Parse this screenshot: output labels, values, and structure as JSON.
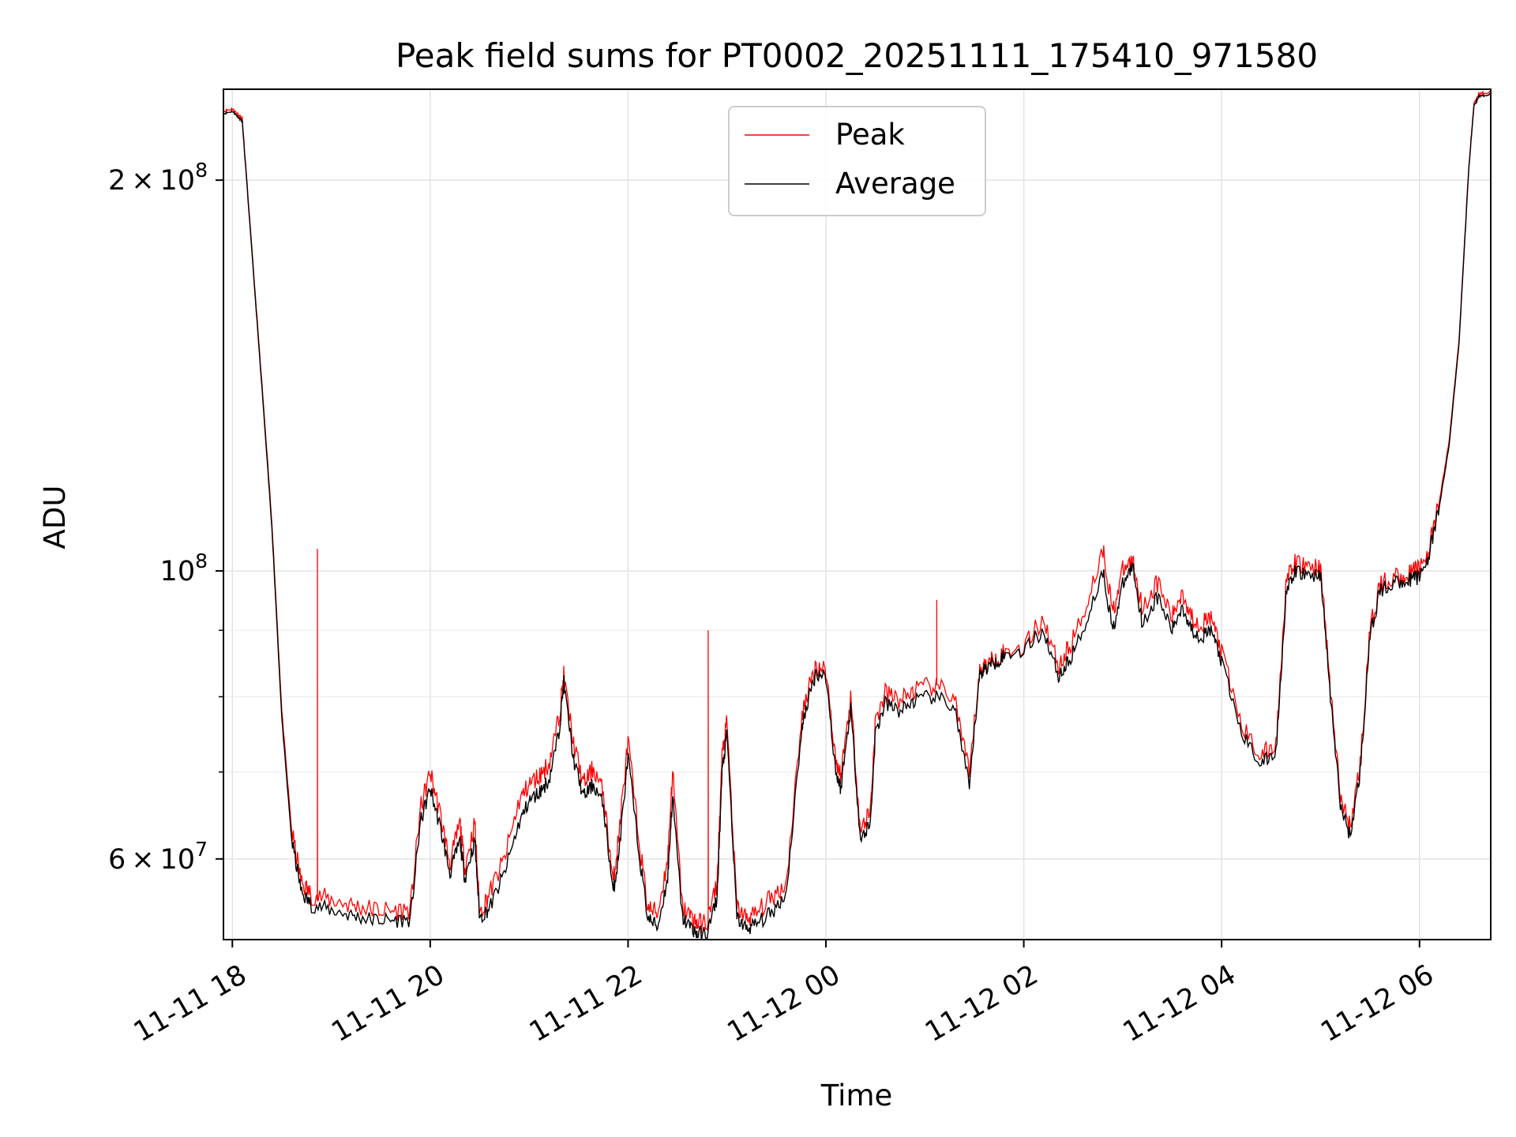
{
  "chart_data": {
    "type": "line",
    "title": "Peak field sums for PT0002_20251111_175410_971580",
    "xlabel": "Time",
    "ylabel": "ADU",
    "yscale": "log",
    "ylim": [
      52000000,
      235000000
    ],
    "xlim_hours": [
      17.91,
      30.72
    ],
    "grid": true,
    "legend_position": "upper-center",
    "x_ticks": [
      {
        "hour": 18,
        "label": "11-11 18"
      },
      {
        "hour": 20,
        "label": "11-11 20"
      },
      {
        "hour": 22,
        "label": "11-11 22"
      },
      {
        "hour": 24,
        "label": "11-12 00"
      },
      {
        "hour": 26,
        "label": "11-12 02"
      },
      {
        "hour": 28,
        "label": "11-12 04"
      },
      {
        "hour": 30,
        "label": "11-12 06"
      }
    ],
    "y_major_ticks": [
      {
        "value": 60000000,
        "mantissa": "6",
        "exp": "7"
      },
      {
        "value": 100000000,
        "mantissa": "",
        "exp": "8"
      },
      {
        "value": 200000000,
        "mantissa": "2",
        "exp": "8"
      }
    ],
    "y_minor_grid": [
      70000000,
      80000000,
      90000000
    ],
    "x_hours": [
      17.91,
      18.0,
      18.05,
      18.1,
      18.2,
      18.3,
      18.4,
      18.5,
      18.6,
      18.7,
      18.8,
      19.0,
      19.2,
      19.4,
      19.6,
      19.8,
      19.9,
      20.0,
      20.1,
      20.2,
      20.3,
      20.35,
      20.45,
      20.5,
      20.6,
      20.75,
      20.9,
      21.0,
      21.1,
      21.2,
      21.3,
      21.35,
      21.45,
      21.55,
      21.65,
      21.75,
      21.85,
      21.9,
      22.0,
      22.1,
      22.2,
      22.3,
      22.4,
      22.45,
      22.55,
      22.65,
      22.7,
      22.8,
      22.9,
      22.95,
      23.0,
      23.1,
      23.2,
      23.3,
      23.45,
      23.6,
      23.75,
      23.8,
      23.9,
      24.0,
      24.1,
      24.15,
      24.25,
      24.35,
      24.45,
      24.5,
      24.6,
      24.75,
      24.9,
      25.1,
      25.3,
      25.45,
      25.55,
      25.6,
      25.7,
      25.8,
      26.0,
      26.2,
      26.35,
      26.45,
      26.6,
      26.8,
      26.9,
      27.0,
      27.1,
      27.2,
      27.35,
      27.5,
      27.6,
      27.7,
      27.8,
      27.9,
      28.0,
      28.2,
      28.4,
      28.55,
      28.65,
      28.75,
      28.9,
      29.0,
      29.1,
      29.2,
      29.3,
      29.4,
      29.5,
      29.6,
      29.75,
      29.9,
      30.0,
      30.1,
      30.2,
      30.3,
      30.4,
      30.5,
      30.55,
      30.6,
      30.72
    ],
    "series": [
      {
        "name": "Average",
        "color": "#000000",
        "values": [
          225000000,
          226000000,
          224000000,
          222000000,
          175000000,
          138000000,
          108000000,
          77000000,
          62000000,
          56500000,
          55300000,
          54800000,
          54300000,
          53900000,
          53800000,
          53900000,
          64000000,
          68000000,
          63500000,
          58500000,
          62000000,
          58000000,
          62000000,
          54000000,
          55000000,
          58500000,
          64000000,
          66500000,
          67500000,
          69000000,
          75000000,
          82000000,
          71500000,
          67000000,
          68500000,
          66000000,
          56500000,
          60000000,
          72000000,
          61500000,
          54000000,
          53200000,
          58000000,
          67000000,
          54000000,
          53000000,
          52500000,
          52600000,
          56000000,
          70000000,
          75000000,
          54000000,
          53000000,
          53500000,
          54500000,
          56500000,
          75000000,
          78500000,
          83500000,
          83000000,
          70000000,
          68000000,
          78500000,
          62000000,
          64000000,
          75000000,
          79000000,
          78000000,
          79500000,
          80000000,
          78500000,
          68000000,
          83000000,
          84000000,
          85000000,
          86000000,
          87000000,
          90000000,
          83000000,
          85000000,
          90000000,
          100000000,
          90000000,
          97500000,
          101000000,
          91000000,
          95500000,
          90000000,
          94000000,
          90000000,
          89000000,
          90000000,
          85000000,
          75000000,
          71000000,
          72500000,
          96000000,
          100000000,
          99000000,
          99500000,
          80000000,
          66000000,
          62500000,
          70000000,
          89000000,
          96500000,
          98000000,
          98500000,
          99000000,
          103000000,
          112000000,
          125000000,
          150000000,
          205000000,
          228000000,
          232000000,
          233000000
        ]
      },
      {
        "name": "Peak",
        "color": "#ff0000",
        "values": [
          226000000,
          227000000,
          225000000,
          223000000,
          176000000,
          139000000,
          109000000,
          78000000,
          63000000,
          57500000,
          56300000,
          55800000,
          55300000,
          54900000,
          54700000,
          54900000,
          65500000,
          70000000,
          65000000,
          59500000,
          64000000,
          59000000,
          64000000,
          54500000,
          56500000,
          60000000,
          66500000,
          68500000,
          69500000,
          71000000,
          77000000,
          83000000,
          73500000,
          68500000,
          70500000,
          67500000,
          57500000,
          62000000,
          74000000,
          63000000,
          55000000,
          54500000,
          60000000,
          70000000,
          55000000,
          54000000,
          53500000,
          53600000,
          57500000,
          72000000,
          76500000,
          55000000,
          54000000,
          54500000,
          56000000,
          57500000,
          76500000,
          80000000,
          84500000,
          84000000,
          71500000,
          69500000,
          80000000,
          63000000,
          65500000,
          76500000,
          80500000,
          79500000,
          81000000,
          81500000,
          80000000,
          69500000,
          83500000,
          84500000,
          85500000,
          86500000,
          87500000,
          92000000,
          84500000,
          87000000,
          92500000,
          104000000,
          93000000,
          100000000,
          102000000,
          93500000,
          98000000,
          92000000,
          96500000,
          92000000,
          91000000,
          92000000,
          86500000,
          76000000,
          72000000,
          73500000,
          98000000,
          101500000,
          100500000,
          101000000,
          81000000,
          67000000,
          63500000,
          71000000,
          90000000,
          97500000,
          99000000,
          99500000,
          100500000,
          104000000,
          113000000,
          126000000,
          151000000,
          206000000,
          229000000,
          233000000,
          234000000
        ]
      }
    ],
    "peak_spikes": [
      {
        "hour": 18.86,
        "value": 104000000
      },
      {
        "hour": 22.81,
        "value": 90000000
      },
      {
        "hour": 25.12,
        "value": 95000000
      }
    ]
  },
  "legend": {
    "peak_label": "Peak",
    "average_label": "Average"
  }
}
